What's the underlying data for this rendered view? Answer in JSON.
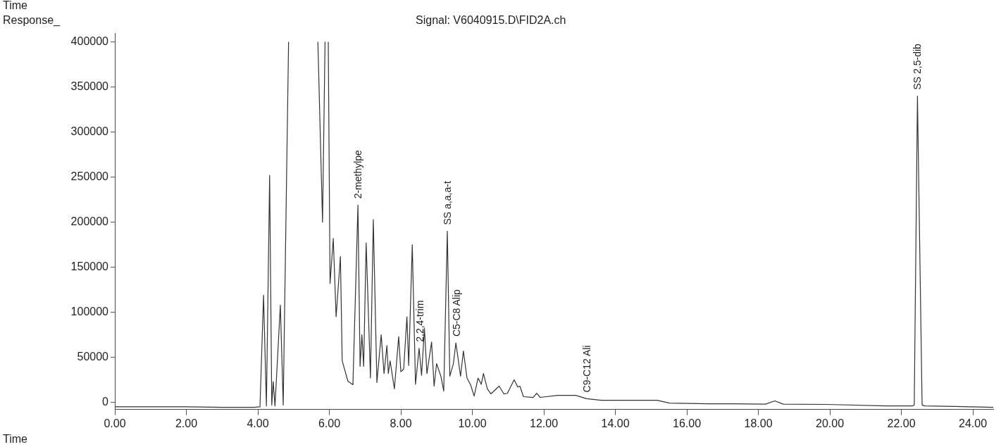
{
  "chart_data": {
    "type": "line",
    "title": "Signal: V6040915.D\\FID2A.ch",
    "ylabel": "Response_",
    "xlabel": "Time",
    "annotations": [
      "Time",
      {
        "text": "2-methylpe",
        "x": 6.8,
        "y": 219000
      },
      {
        "text": "2,2,4-trim",
        "x": 8.53,
        "y": 60000
      },
      {
        "text": "SS a,a,a-t",
        "x": 9.3,
        "y": 190000
      },
      {
        "text": "C5-C8 Alip",
        "x": 9.56,
        "y": 66000
      },
      {
        "text": "C9-C12 Ali",
        "x": 13.2,
        "y": 4000
      },
      {
        "text": "SS 2,5-dib",
        "x": 22.45,
        "y": 340000
      }
    ],
    "xlim": [
      0,
      24.57
    ],
    "ylim": [
      -8000,
      410000
    ],
    "xticks": [
      {
        "value": 0,
        "label": "0.00"
      },
      {
        "value": 2,
        "label": "2.00"
      },
      {
        "value": 4,
        "label": "4.00"
      },
      {
        "value": 6,
        "label": "6.00"
      },
      {
        "value": 8,
        "label": "8.00"
      },
      {
        "value": 10,
        "label": "10.00"
      },
      {
        "value": 12,
        "label": "12.00"
      },
      {
        "value": 14,
        "label": "14.00"
      },
      {
        "value": 16,
        "label": "16.00"
      },
      {
        "value": 18,
        "label": "18.00"
      },
      {
        "value": 20,
        "label": "20.00"
      },
      {
        "value": 22,
        "label": "22.00"
      },
      {
        "value": 24,
        "label": "24.00"
      }
    ],
    "yticks": [
      0,
      50000,
      100000,
      150000,
      200000,
      250000,
      300000,
      350000,
      400000
    ],
    "grid": false,
    "legend": false,
    "marker": "none",
    "line_style": "solid",
    "series": [
      {
        "color": "#333333",
        "x": [
          0,
          1,
          2,
          3,
          3.9,
          4.06,
          4.16,
          4.24,
          4.33,
          4.39,
          4.43,
          4.48,
          4.63,
          4.71,
          4.86,
          4.9,
          5.68,
          5.81,
          5.88,
          5.95,
          5.97,
          6.02,
          6.11,
          6.19,
          6.31,
          6.36,
          6.52,
          6.66,
          6.8,
          6.86,
          6.91,
          6.96,
          7.03,
          7.15,
          7.23,
          7.33,
          7.45,
          7.53,
          7.61,
          7.65,
          7.7,
          7.82,
          7.94,
          8.0,
          8.08,
          8.17,
          8.22,
          8.32,
          8.41,
          8.51,
          8.58,
          8.66,
          8.73,
          8.86,
          8.93,
          9.0,
          9.12,
          9.2,
          9.3,
          9.37,
          9.47,
          9.54,
          9.67,
          9.75,
          9.85,
          9.95,
          10.05,
          10.16,
          10.25,
          10.31,
          10.42,
          10.52,
          10.75,
          10.88,
          10.98,
          11.17,
          11.27,
          11.33,
          11.43,
          11.7,
          11.8,
          11.9,
          12.39,
          12.89,
          13.2,
          13.6,
          15.17,
          15.51,
          16.63,
          17.3,
          18.2,
          18.46,
          18.7,
          19.9,
          21.56,
          22.3,
          22.36,
          22.45,
          22.58,
          22.66,
          23.5,
          24.57
        ],
        "values": [
          -5000,
          -5000,
          -5000,
          -5500,
          -5500,
          -5000,
          119000,
          -4000,
          252000,
          -3000,
          23000,
          -4000,
          108000,
          -3000,
          400000,
          null,
          400000,
          200000,
          400000,
          null,
          400000,
          132000,
          182000,
          95000,
          162000,
          46000,
          23500,
          19600,
          219000,
          40000,
          75000,
          40000,
          177000,
          27000,
          203000,
          22000,
          75000,
          32000,
          63000,
          32000,
          46000,
          15000,
          73000,
          34000,
          37000,
          95000,
          41000,
          175000,
          20000,
          60000,
          30000,
          82000,
          32000,
          67000,
          18000,
          43000,
          29000,
          12500,
          190000,
          29000,
          43000,
          66000,
          29000,
          57000,
          27000,
          19600,
          7000,
          27000,
          20000,
          32000,
          15000,
          9400,
          18000,
          9400,
          10000,
          25000,
          17000,
          18000,
          6300,
          5500,
          10000,
          5500,
          7800,
          7800,
          4000,
          2300,
          2300,
          -800,
          -1600,
          -1600,
          -2000,
          1600,
          -2000,
          -2300,
          -4000,
          -4000,
          -3000,
          340000,
          -3000,
          -4000,
          -4500,
          -5500
        ]
      }
    ]
  }
}
